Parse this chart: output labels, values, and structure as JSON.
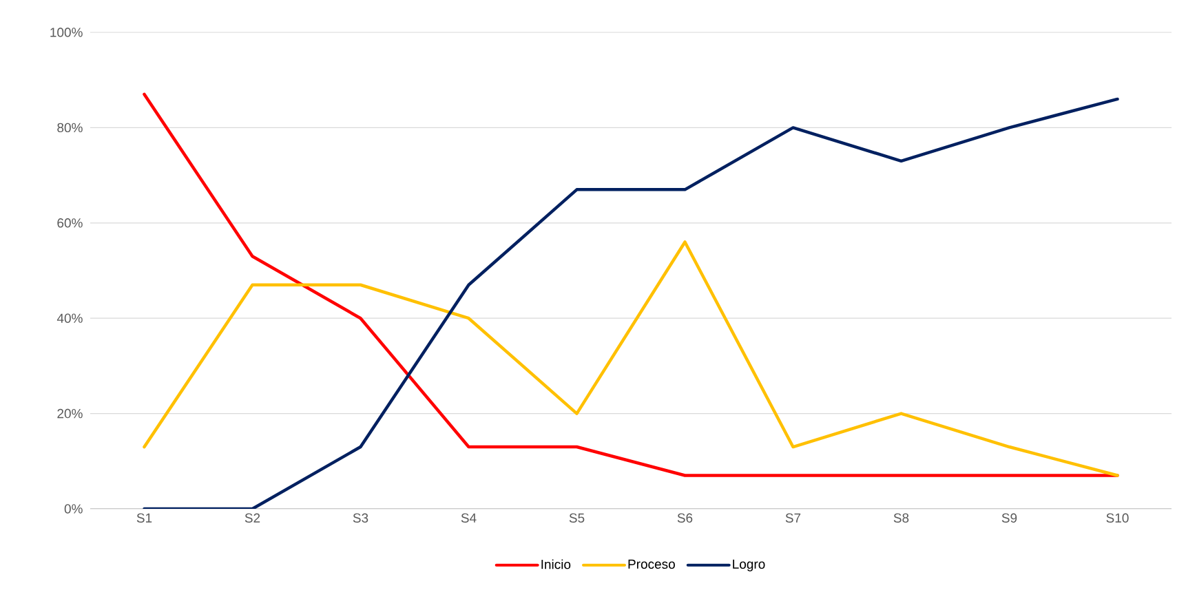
{
  "chart_data": {
    "type": "line",
    "categories": [
      "S1",
      "S2",
      "S3",
      "S4",
      "S5",
      "S6",
      "S7",
      "S8",
      "S9",
      "S10"
    ],
    "series": [
      {
        "name": "Inicio",
        "color": "#ff0000",
        "values": [
          87,
          53,
          40,
          13,
          13,
          7,
          7,
          7,
          7,
          7
        ]
      },
      {
        "name": "Proceso",
        "color": "#ffc000",
        "values": [
          13,
          47,
          47,
          40,
          20,
          56,
          13,
          20,
          13,
          7
        ]
      },
      {
        "name": "Logro",
        "color": "#002060",
        "values": [
          0,
          0,
          13,
          47,
          67,
          67,
          80,
          73,
          80,
          86
        ]
      }
    ],
    "ylim": [
      0,
      100
    ],
    "yticks": [
      {
        "value": 0,
        "label": "0%"
      },
      {
        "value": 20,
        "label": "20%"
      },
      {
        "value": 40,
        "label": "40%"
      },
      {
        "value": 60,
        "label": "60%"
      },
      {
        "value": 80,
        "label": "80%"
      },
      {
        "value": 100,
        "label": "100%"
      }
    ],
    "grid": "y",
    "legend": "bottom",
    "marker": "none",
    "line_style": "solid"
  }
}
